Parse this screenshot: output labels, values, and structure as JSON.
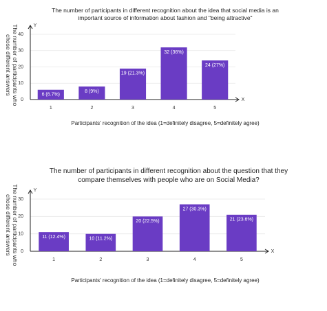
{
  "chart_data": [
    {
      "type": "bar",
      "title": "The number of participants in different recognition about the idea that social media is an important source of information about fashion and \"being attractive\"",
      "y_label": "The number of participants who chose different answers",
      "x_label": "Participants' recognition of the idea (1=definitely disagree, 5=definitely agree)",
      "y_axis_letter": "Y",
      "x_axis_letter": "X",
      "categories": [
        "1",
        "2",
        "3",
        "4",
        "5"
      ],
      "values": [
        6,
        8,
        19,
        32,
        24
      ],
      "value_labels": [
        "6 (6.7%)",
        "8 (9%)",
        "19 (21.3%)",
        "32 (36%)",
        "24 (27%)"
      ],
      "color": "#6a3cc4",
      "ylim": [
        0,
        40
      ],
      "yticks": [
        0,
        10,
        20,
        30,
        40
      ],
      "grid": true
    },
    {
      "type": "bar",
      "title": "The number of participants in different recognition about the question that they compare themselves with people who are on Social Media?",
      "y_label": "The number of participants who chose different answers",
      "x_label": "Participants' recognition of the idea (1=definitely disagree, 5=definitely agree)",
      "y_axis_letter": "Y",
      "x_axis_letter": "X",
      "categories": [
        "1",
        "2",
        "3",
        "4",
        "5"
      ],
      "values": [
        11,
        10,
        20,
        27,
        21
      ],
      "value_labels": [
        "11 (12.4%)",
        "10 (11.2%)",
        "20 (22.5%)",
        "27 (30.3%)",
        "21 (23.6%)"
      ],
      "color": "#6a3cc4",
      "ylim": [
        0,
        30
      ],
      "yticks": [
        0,
        10,
        20,
        30
      ],
      "grid": true
    }
  ]
}
